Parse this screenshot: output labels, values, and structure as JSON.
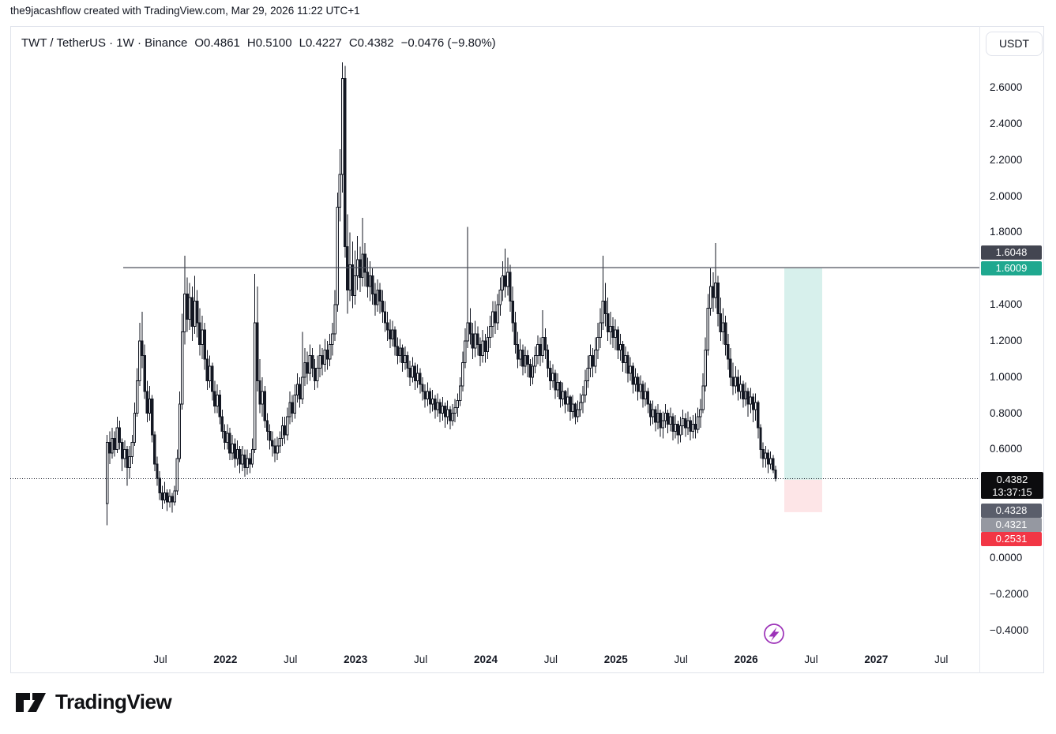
{
  "attribution": "the9jacashflow created with TradingView.com, Mar 29, 2026 11:22 UTC+1",
  "header": {
    "symbol_title": "TWT / TetherUS · 1W · Binance",
    "ohlc": [
      "O0.4861",
      "H0.5100",
      "L0.4227",
      "C0.4382"
    ],
    "change": "−0.0476 (−9.80%)"
  },
  "currency_button": "USDT",
  "price_axis": {
    "ticks": [
      "2.6000",
      "2.4000",
      "2.2000",
      "2.0000",
      "1.8000",
      "1.4000",
      "1.2000",
      "1.0000",
      "0.8000",
      "0.6000",
      "0.0000",
      "−0.2000",
      "−0.4000"
    ],
    "badges": {
      "line_label": "1.6048",
      "target_label": "1.6009",
      "last_price": "0.4382",
      "countdown": "13:37:15",
      "entry_label": "0.4328",
      "entry_alt_label": "0.4321",
      "stop_label": "0.2531"
    }
  },
  "time_axis": {
    "labels": [
      {
        "text": "Jul",
        "bold": false
      },
      {
        "text": "2022",
        "bold": true
      },
      {
        "text": "Jul",
        "bold": false
      },
      {
        "text": "2023",
        "bold": true
      },
      {
        "text": "Jul",
        "bold": false
      },
      {
        "text": "2024",
        "bold": true
      },
      {
        "text": "Jul",
        "bold": false
      },
      {
        "text": "2025",
        "bold": true
      },
      {
        "text": "Jul",
        "bold": false
      },
      {
        "text": "2026",
        "bold": true
      },
      {
        "text": "Jul",
        "bold": false
      },
      {
        "text": "2027",
        "bold": true
      },
      {
        "text": "Jul",
        "bold": false
      }
    ]
  },
  "logo_text": "TradingView",
  "colors": {
    "text": "#131722",
    "border": "#e0e3eb",
    "candle": "#131722",
    "line_1_6048": "#4a4e59",
    "badge_dark": "#434651",
    "badge_teal": "#1fa88f",
    "badge_black": "#0c0c0e",
    "badge_gray": "#5a5e6b",
    "badge_gray_light": "#9598a1",
    "badge_red": "#f23645",
    "long_box_fill": "rgba(34,171,148,0.18)",
    "stop_box_fill": "rgba(242,54,69,0.13)",
    "marker_purple": "#9c32b8"
  },
  "chart_data": {
    "type": "candlestick",
    "symbol": "TWT / TetherUS",
    "exchange": "Binance",
    "timeframe": "1W",
    "style": "black/white bars, no grid",
    "legend_position": "top-left overlay",
    "ylim": [
      -0.52,
      2.78
    ],
    "x_range": "early 2021 to Mar 29 2026, weekly bars; axis extends to Dec 2027",
    "last_bar": {
      "open": 0.4861,
      "high": 0.51,
      "low": 0.4227,
      "close": 0.4382,
      "change": -0.0476,
      "change_pct": -9.8
    },
    "levels": {
      "horizontal_line": 1.6048,
      "current_price": 0.4382,
      "long_position": {
        "entry": 0.4328,
        "entry_alt": 0.4321,
        "target": 1.6009,
        "stop": 0.2531
      }
    },
    "first_open": 0.3,
    "bars_hlc": [
      [
        0.68,
        0.18,
        0.64
      ],
      [
        0.7,
        0.52,
        0.58
      ],
      [
        0.72,
        0.55,
        0.66
      ],
      [
        0.7,
        0.56,
        0.6
      ],
      [
        0.78,
        0.58,
        0.72
      ],
      [
        0.76,
        0.6,
        0.64
      ],
      [
        0.66,
        0.48,
        0.55
      ],
      [
        0.65,
        0.5,
        0.6
      ],
      [
        0.62,
        0.4,
        0.5
      ],
      [
        0.62,
        0.44,
        0.56
      ],
      [
        0.68,
        0.52,
        0.64
      ],
      [
        0.86,
        0.62,
        0.8
      ],
      [
        1.05,
        0.78,
        0.98
      ],
      [
        1.3,
        0.95,
        1.2
      ],
      [
        1.36,
        1.05,
        1.12
      ],
      [
        1.18,
        0.88,
        0.92
      ],
      [
        0.98,
        0.75,
        0.8
      ],
      [
        0.95,
        0.76,
        0.88
      ],
      [
        0.9,
        0.64,
        0.68
      ],
      [
        0.7,
        0.48,
        0.52
      ],
      [
        0.56,
        0.4,
        0.44
      ],
      [
        0.48,
        0.32,
        0.36
      ],
      [
        0.4,
        0.27,
        0.32
      ],
      [
        0.42,
        0.3,
        0.36
      ],
      [
        0.38,
        0.26,
        0.31
      ],
      [
        0.38,
        0.28,
        0.34
      ],
      [
        0.36,
        0.25,
        0.31
      ],
      [
        0.4,
        0.29,
        0.37
      ],
      [
        0.6,
        0.35,
        0.55
      ],
      [
        0.92,
        0.53,
        0.85
      ],
      [
        1.35,
        0.82,
        1.25
      ],
      [
        1.67,
        1.18,
        1.46
      ],
      [
        1.55,
        1.25,
        1.32
      ],
      [
        1.52,
        1.26,
        1.44
      ],
      [
        1.5,
        1.2,
        1.28
      ],
      [
        1.56,
        1.24,
        1.42
      ],
      [
        1.48,
        1.22,
        1.3
      ],
      [
        1.38,
        1.12,
        1.18
      ],
      [
        1.34,
        1.1,
        1.26
      ],
      [
        1.3,
        1.04,
        1.1
      ],
      [
        1.15,
        0.93,
        0.98
      ],
      [
        1.12,
        0.94,
        1.06
      ],
      [
        1.08,
        0.87,
        0.92
      ],
      [
        0.98,
        0.8,
        0.84
      ],
      [
        0.96,
        0.8,
        0.9
      ],
      [
        0.93,
        0.74,
        0.78
      ],
      [
        0.82,
        0.66,
        0.7
      ],
      [
        0.74,
        0.6,
        0.64
      ],
      [
        0.74,
        0.6,
        0.69
      ],
      [
        0.72,
        0.54,
        0.58
      ],
      [
        0.68,
        0.54,
        0.63
      ],
      [
        0.66,
        0.5,
        0.55
      ],
      [
        0.65,
        0.51,
        0.6
      ],
      [
        0.62,
        0.47,
        0.52
      ],
      [
        0.62,
        0.48,
        0.57
      ],
      [
        0.6,
        0.45,
        0.5
      ],
      [
        0.6,
        0.46,
        0.55
      ],
      [
        0.58,
        0.47,
        0.52
      ],
      [
        0.66,
        0.5,
        0.6
      ],
      [
        1.57,
        0.58,
        1.3
      ],
      [
        1.5,
        0.92,
        0.98
      ],
      [
        1.1,
        0.8,
        0.85
      ],
      [
        1.0,
        0.78,
        0.92
      ],
      [
        0.95,
        0.72,
        0.76
      ],
      [
        0.8,
        0.65,
        0.7
      ],
      [
        0.74,
        0.6,
        0.65
      ],
      [
        0.7,
        0.56,
        0.62
      ],
      [
        0.66,
        0.53,
        0.58
      ],
      [
        0.67,
        0.54,
        0.62
      ],
      [
        0.7,
        0.58,
        0.66
      ],
      [
        0.78,
        0.62,
        0.73
      ],
      [
        0.78,
        0.63,
        0.68
      ],
      [
        0.83,
        0.65,
        0.78
      ],
      [
        0.92,
        0.74,
        0.86
      ],
      [
        0.9,
        0.75,
        0.8
      ],
      [
        0.96,
        0.77,
        0.9
      ],
      [
        1.02,
        0.86,
        0.96
      ],
      [
        1.0,
        0.83,
        0.88
      ],
      [
        1.25,
        0.85,
        1.0
      ],
      [
        1.16,
        0.95,
        1.08
      ],
      [
        1.14,
        0.96,
        1.02
      ],
      [
        1.18,
        0.98,
        1.12
      ],
      [
        1.16,
        1.0,
        1.05
      ],
      [
        1.1,
        0.93,
        0.98
      ],
      [
        1.12,
        0.94,
        1.05
      ],
      [
        1.18,
        1.0,
        1.12
      ],
      [
        1.16,
        1.01,
        1.07
      ],
      [
        1.21,
        1.03,
        1.15
      ],
      [
        1.2,
        1.04,
        1.1
      ],
      [
        1.24,
        1.06,
        1.18
      ],
      [
        1.3,
        1.12,
        1.24
      ],
      [
        1.48,
        1.2,
        1.4
      ],
      [
        2.02,
        1.36,
        1.94
      ],
      [
        2.26,
        1.86,
        2.12
      ],
      [
        2.74,
        2.02,
        2.65
      ],
      [
        2.72,
        1.66,
        1.72
      ],
      [
        1.9,
        1.35,
        1.48
      ],
      [
        1.8,
        1.42,
        1.62
      ],
      [
        1.75,
        1.38,
        1.45
      ],
      [
        1.7,
        1.4,
        1.56
      ],
      [
        1.78,
        1.48,
        1.65
      ],
      [
        1.72,
        1.47,
        1.55
      ],
      [
        1.88,
        1.5,
        1.68
      ],
      [
        1.74,
        1.5,
        1.58
      ],
      [
        1.66,
        1.44,
        1.5
      ],
      [
        1.64,
        1.42,
        1.56
      ],
      [
        1.6,
        1.4,
        1.46
      ],
      [
        1.52,
        1.34,
        1.4
      ],
      [
        1.54,
        1.36,
        1.48
      ],
      [
        1.52,
        1.35,
        1.42
      ],
      [
        1.48,
        1.3,
        1.36
      ],
      [
        1.42,
        1.25,
        1.3
      ],
      [
        1.36,
        1.2,
        1.26
      ],
      [
        1.32,
        1.16,
        1.21
      ],
      [
        1.31,
        1.17,
        1.26
      ],
      [
        1.28,
        1.12,
        1.17
      ],
      [
        1.22,
        1.07,
        1.12
      ],
      [
        1.21,
        1.08,
        1.16
      ],
      [
        1.18,
        1.03,
        1.08
      ],
      [
        1.17,
        1.04,
        1.12
      ],
      [
        1.14,
        1.0,
        1.05
      ],
      [
        1.09,
        0.95,
        1.0
      ],
      [
        1.11,
        0.97,
        1.06
      ],
      [
        1.08,
        0.93,
        0.98
      ],
      [
        1.07,
        0.94,
        1.02
      ],
      [
        1.05,
        0.91,
        0.96
      ],
      [
        1.0,
        0.87,
        0.92
      ],
      [
        0.96,
        0.83,
        0.88
      ],
      [
        0.97,
        0.84,
        0.92
      ],
      [
        0.94,
        0.8,
        0.85
      ],
      [
        0.93,
        0.81,
        0.88
      ],
      [
        0.9,
        0.77,
        0.82
      ],
      [
        0.91,
        0.78,
        0.86
      ],
      [
        0.88,
        0.75,
        0.8
      ],
      [
        0.89,
        0.76,
        0.84
      ],
      [
        0.86,
        0.72,
        0.78
      ],
      [
        0.87,
        0.74,
        0.82
      ],
      [
        0.84,
        0.71,
        0.76
      ],
      [
        0.85,
        0.73,
        0.8
      ],
      [
        0.88,
        0.75,
        0.83
      ],
      [
        0.91,
        0.78,
        0.87
      ],
      [
        1.0,
        0.84,
        0.95
      ],
      [
        1.14,
        0.92,
        1.08
      ],
      [
        1.27,
        1.05,
        1.2
      ],
      [
        1.83,
        1.16,
        1.3
      ],
      [
        1.38,
        1.18,
        1.24
      ],
      [
        1.3,
        1.1,
        1.16
      ],
      [
        1.31,
        1.11,
        1.24
      ],
      [
        1.28,
        1.12,
        1.18
      ],
      [
        1.22,
        1.06,
        1.12
      ],
      [
        1.26,
        1.08,
        1.2
      ],
      [
        1.24,
        1.08,
        1.14
      ],
      [
        1.28,
        1.1,
        1.22
      ],
      [
        1.34,
        1.16,
        1.28
      ],
      [
        1.42,
        1.22,
        1.36
      ],
      [
        1.42,
        1.24,
        1.3
      ],
      [
        1.46,
        1.26,
        1.4
      ],
      [
        1.55,
        1.34,
        1.48
      ],
      [
        1.64,
        1.42,
        1.56
      ],
      [
        1.71,
        1.44,
        1.5
      ],
      [
        1.66,
        1.45,
        1.58
      ],
      [
        1.62,
        1.36,
        1.42
      ],
      [
        1.5,
        1.25,
        1.3
      ],
      [
        1.36,
        1.13,
        1.18
      ],
      [
        1.25,
        1.05,
        1.1
      ],
      [
        1.21,
        1.06,
        1.15
      ],
      [
        1.18,
        1.01,
        1.06
      ],
      [
        1.17,
        1.02,
        1.12
      ],
      [
        1.15,
        1.0,
        1.07
      ],
      [
        1.1,
        0.95,
        1.0
      ],
      [
        1.11,
        0.96,
        1.06
      ],
      [
        1.17,
        1.02,
        1.12
      ],
      [
        1.23,
        1.07,
        1.18
      ],
      [
        1.22,
        1.06,
        1.12
      ],
      [
        1.37,
        1.08,
        1.22
      ],
      [
        1.27,
        1.1,
        1.15
      ],
      [
        1.18,
        1.0,
        1.05
      ],
      [
        1.09,
        0.93,
        0.98
      ],
      [
        1.07,
        0.94,
        1.02
      ],
      [
        1.04,
        0.88,
        0.93
      ],
      [
        1.02,
        0.89,
        0.97
      ],
      [
        0.98,
        0.83,
        0.88
      ],
      [
        0.97,
        0.84,
        0.92
      ],
      [
        0.93,
        0.8,
        0.85
      ],
      [
        0.94,
        0.81,
        0.89
      ],
      [
        0.9,
        0.76,
        0.81
      ],
      [
        0.9,
        0.77,
        0.85
      ],
      [
        0.86,
        0.74,
        0.78
      ],
      [
        0.87,
        0.75,
        0.82
      ],
      [
        0.91,
        0.78,
        0.86
      ],
      [
        0.95,
        0.8,
        0.9
      ],
      [
        1.04,
        0.86,
        0.98
      ],
      [
        1.12,
        0.94,
        1.05
      ],
      [
        1.18,
        1.0,
        1.12
      ],
      [
        1.16,
        1.0,
        1.06
      ],
      [
        1.22,
        1.02,
        1.15
      ],
      [
        1.3,
        1.1,
        1.22
      ],
      [
        1.38,
        1.16,
        1.3
      ],
      [
        1.67,
        1.26,
        1.42
      ],
      [
        1.52,
        1.28,
        1.35
      ],
      [
        1.44,
        1.2,
        1.25
      ],
      [
        1.36,
        1.18,
        1.28
      ],
      [
        1.33,
        1.16,
        1.22
      ],
      [
        1.32,
        1.15,
        1.26
      ],
      [
        1.28,
        1.1,
        1.15
      ],
      [
        1.24,
        1.09,
        1.18
      ],
      [
        1.2,
        1.03,
        1.08
      ],
      [
        1.17,
        1.02,
        1.12
      ],
      [
        1.14,
        0.97,
        1.02
      ],
      [
        1.11,
        0.98,
        1.06
      ],
      [
        1.08,
        0.91,
        0.96
      ],
      [
        1.05,
        0.92,
        1.0
      ],
      [
        1.02,
        0.87,
        0.92
      ],
      [
        1.01,
        0.88,
        0.96
      ],
      [
        0.98,
        0.83,
        0.88
      ],
      [
        0.97,
        0.84,
        0.92
      ],
      [
        0.94,
        0.8,
        0.85
      ],
      [
        0.87,
        0.73,
        0.78
      ],
      [
        0.87,
        0.74,
        0.82
      ],
      [
        0.84,
        0.7,
        0.75
      ],
      [
        0.85,
        0.71,
        0.8
      ],
      [
        0.82,
        0.67,
        0.72
      ],
      [
        0.81,
        0.66,
        0.76
      ],
      [
        0.85,
        0.72,
        0.8
      ],
      [
        0.82,
        0.69,
        0.74
      ],
      [
        0.83,
        0.7,
        0.78
      ],
      [
        0.8,
        0.65,
        0.7
      ],
      [
        0.79,
        0.66,
        0.74
      ],
      [
        0.76,
        0.63,
        0.68
      ],
      [
        0.78,
        0.64,
        0.73
      ],
      [
        0.82,
        0.68,
        0.77
      ],
      [
        0.8,
        0.67,
        0.72
      ],
      [
        0.81,
        0.68,
        0.76
      ],
      [
        0.78,
        0.65,
        0.7
      ],
      [
        0.79,
        0.66,
        0.74
      ],
      [
        0.8,
        0.66,
        0.71
      ],
      [
        0.83,
        0.69,
        0.78
      ],
      [
        0.88,
        0.72,
        0.82
      ],
      [
        1.02,
        0.8,
        0.95
      ],
      [
        1.22,
        0.92,
        1.15
      ],
      [
        1.46,
        1.12,
        1.38
      ],
      [
        1.6,
        1.34,
        1.5
      ],
      [
        1.58,
        1.36,
        1.44
      ],
      [
        1.74,
        1.38,
        1.52
      ],
      [
        1.56,
        1.28,
        1.35
      ],
      [
        1.44,
        1.2,
        1.25
      ],
      [
        1.38,
        1.18,
        1.3
      ],
      [
        1.34,
        1.12,
        1.18
      ],
      [
        1.24,
        1.04,
        1.1
      ],
      [
        1.16,
        0.95,
        1.0
      ],
      [
        1.08,
        0.9,
        0.95
      ],
      [
        1.06,
        0.91,
        1.0
      ],
      [
        1.04,
        0.87,
        0.92
      ],
      [
        1.01,
        0.88,
        0.96
      ],
      [
        0.98,
        0.83,
        0.88
      ],
      [
        0.97,
        0.84,
        0.92
      ],
      [
        0.94,
        0.78,
        0.85
      ],
      [
        0.94,
        0.8,
        0.89
      ],
      [
        0.91,
        0.75,
        0.82
      ],
      [
        0.91,
        0.76,
        0.86
      ],
      [
        0.87,
        0.66,
        0.72
      ],
      [
        0.74,
        0.55,
        0.6
      ],
      [
        0.64,
        0.5,
        0.55
      ],
      [
        0.62,
        0.5,
        0.58
      ],
      [
        0.6,
        0.47,
        0.52
      ],
      [
        0.59,
        0.49,
        0.55
      ],
      [
        0.57,
        0.47,
        0.4861
      ],
      [
        0.51,
        0.4227,
        0.4382
      ]
    ]
  }
}
